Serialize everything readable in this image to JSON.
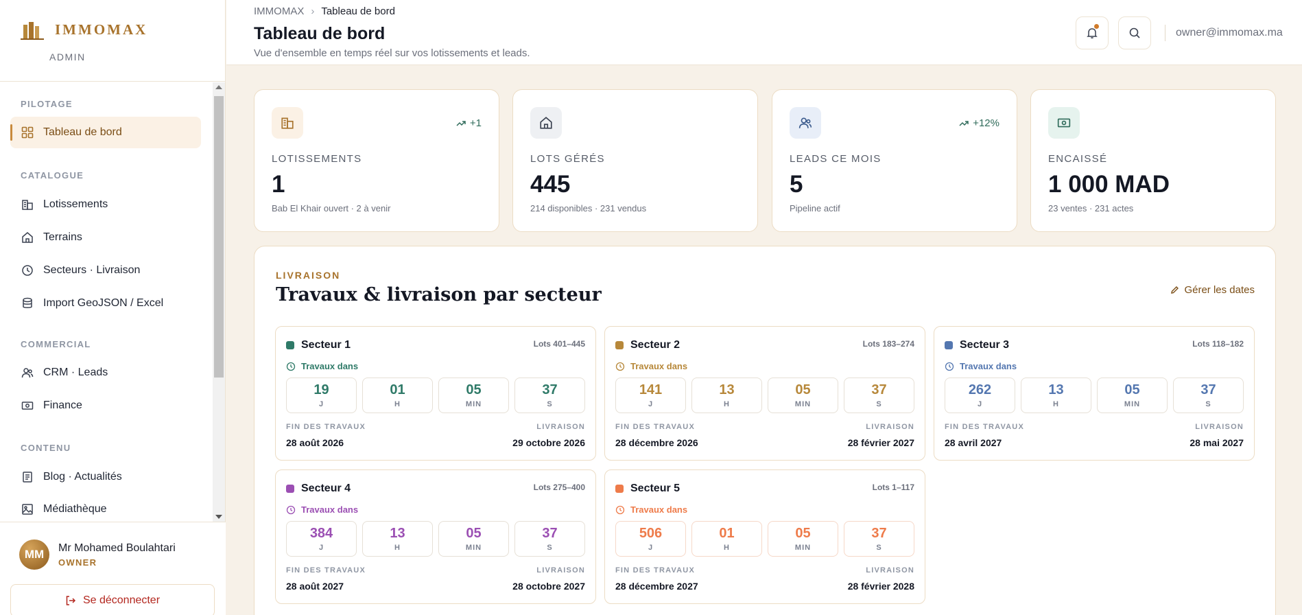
{
  "brand": {
    "name": "IMMOMAX",
    "sub": "ADMIN",
    "color": "#a8732c"
  },
  "nav": {
    "sections": [
      {
        "label": "PILOTAGE",
        "items": [
          {
            "label": "Tableau de bord",
            "icon": "dashboard-icon",
            "active": true
          }
        ]
      },
      {
        "label": "CATALOGUE",
        "items": [
          {
            "label": "Lotissements",
            "icon": "buildings-icon"
          },
          {
            "label": "Terrains",
            "icon": "house-icon"
          },
          {
            "label": "Secteurs · Livraison",
            "icon": "clock-icon"
          },
          {
            "label": "Import GeoJSON / Excel",
            "icon": "database-icon"
          }
        ]
      },
      {
        "label": "COMMERCIAL",
        "items": [
          {
            "label": "CRM · Leads",
            "icon": "users-icon"
          },
          {
            "label": "Finance",
            "icon": "banknote-icon"
          }
        ]
      },
      {
        "label": "CONTENU",
        "items": [
          {
            "label": "Blog · Actualités",
            "icon": "newspaper-icon"
          },
          {
            "label": "Médiathèque",
            "icon": "image-icon"
          }
        ]
      }
    ]
  },
  "user": {
    "initials": "MM",
    "name": "Mr Mohamed Boulahtari",
    "role": "OWNER",
    "logout": "Se déconnecter"
  },
  "header": {
    "breadcrumb": [
      "IMMOMAX",
      "Tableau de bord"
    ],
    "title": "Tableau de bord",
    "subtitle": "Vue d'ensemble en temps réel sur vos lotissements et leads.",
    "email": "owner@immomax.ma"
  },
  "kpis": [
    {
      "label": "LOTISSEMENTS",
      "value": "1",
      "foot": "Bab El Khair ouvert · 2 à venir",
      "trend": "+1",
      "icon": "buildings-icon",
      "bg": "#fbf1e5",
      "iconColor": "#a8732c"
    },
    {
      "label": "LOTS GÉRÉS",
      "value": "445",
      "foot": "214 disponibles · 231 vendus",
      "trend": "",
      "icon": "house-icon",
      "bg": "#eef0f3",
      "iconColor": "#3a4150"
    },
    {
      "label": "LEADS CE MOIS",
      "value": "5",
      "foot": "Pipeline actif",
      "trend": "+12%",
      "icon": "users-icon",
      "bg": "#e8eef8",
      "iconColor": "#3a5a8c"
    },
    {
      "label": "ENCAISSÉ",
      "value": "1 000 MAD",
      "foot": "23 ventes · 231 actes",
      "trend": "",
      "icon": "banknote-icon",
      "bg": "#e6f3ee",
      "iconColor": "#2f6b5a"
    }
  ],
  "livraison": {
    "kicker": "LIVRAISON",
    "title": "Travaux & livraison par secteur",
    "action": "Gérer les dates",
    "status_label": "Travaux dans",
    "units": [
      "J",
      "H",
      "MIN",
      "S"
    ],
    "end_label": "FIN DES TRAVAUX",
    "delivery_label": "LIVRAISON",
    "sectors": [
      {
        "name": "Secteur 1",
        "lots": "Lots 401–445",
        "color": "#2f7a68",
        "countdown": [
          "19",
          "01",
          "05",
          "37"
        ],
        "end": "28 août 2026",
        "delivery": "29 octobre 2026"
      },
      {
        "name": "Secteur 2",
        "lots": "Lots 183–274",
        "color": "#b7883a",
        "countdown": [
          "141",
          "13",
          "05",
          "37"
        ],
        "end": "28 décembre 2026",
        "delivery": "28 février 2027"
      },
      {
        "name": "Secteur 3",
        "lots": "Lots 118–182",
        "color": "#5477b0",
        "countdown": [
          "262",
          "13",
          "05",
          "37"
        ],
        "end": "28 avril 2027",
        "delivery": "28 mai 2027"
      },
      {
        "name": "Secteur 4",
        "lots": "Lots 275–400",
        "color": "#9b4fb3",
        "countdown": [
          "384",
          "13",
          "05",
          "37"
        ],
        "end": "28 août 2027",
        "delivery": "28 octobre 2027"
      },
      {
        "name": "Secteur 5",
        "lots": "Lots 1–117",
        "color": "#ee7b4a",
        "countdown": [
          "506",
          "01",
          "05",
          "37"
        ],
        "end": "28 décembre 2027",
        "delivery": "28 février 2028"
      }
    ]
  }
}
